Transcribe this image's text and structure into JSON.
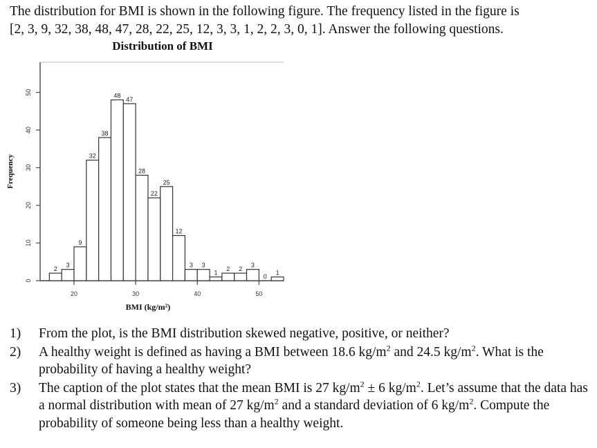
{
  "intro": {
    "line1": "The distribution for BMI is shown in the following figure. The frequency listed in the figure is",
    "line2": "[2, 3, 9, 32, 38, 48, 47, 28, 22, 25, 12, 3, 3, 1, 2, 2, 3, 0, 1]. Answer the following questions."
  },
  "chart_data": {
    "type": "bar",
    "title": "Distribution of BMI",
    "xlabel": "BMI (kg/m²)",
    "ylabel": "Frequency",
    "x_bin_starts": [
      16,
      18,
      20,
      22,
      24,
      26,
      28,
      30,
      32,
      34,
      36,
      38,
      40,
      42,
      44,
      46,
      48,
      50,
      52
    ],
    "bin_width": 2,
    "values": [
      2,
      3,
      9,
      32,
      38,
      48,
      47,
      28,
      22,
      25,
      12,
      3,
      3,
      1,
      2,
      2,
      3,
      0,
      1
    ],
    "data_labels": [
      "2",
      "3",
      "9",
      "32",
      "38",
      "48",
      "47",
      "28",
      "22",
      "25",
      "12",
      "3",
      "3",
      "1",
      "2",
      "2",
      "3",
      "0",
      "1"
    ],
    "x_ticks": [
      "20",
      "30",
      "40",
      "50"
    ],
    "x_tick_values": [
      20,
      30,
      40,
      50
    ],
    "y_ticks": [
      "0",
      "10",
      "20",
      "30",
      "40",
      "50"
    ],
    "y_tick_values": [
      0,
      10,
      20,
      30,
      40,
      50
    ],
    "xlim": [
      14.5,
      54
    ],
    "ylim": [
      0,
      58
    ],
    "grid": false
  },
  "questions": [
    {
      "num": "1)",
      "text": "From the plot, is the BMI distribution skewed negative, positive, or neither?"
    },
    {
      "num": "2)",
      "text": "A healthy weight is defined as having a BMI between 18.6 kg/m² and 24.5 kg/m². What is the probability of having a healthy weight?"
    },
    {
      "num": "3)",
      "text": "The caption of the plot states that the mean BMI is 27 kg/m² ± 6 kg/m². Let’s assume that the data has a normal distribution with mean of 27 kg/m² and a standard deviation of 6 kg/m². Compute the probability of someone being less than a healthy weight."
    }
  ]
}
